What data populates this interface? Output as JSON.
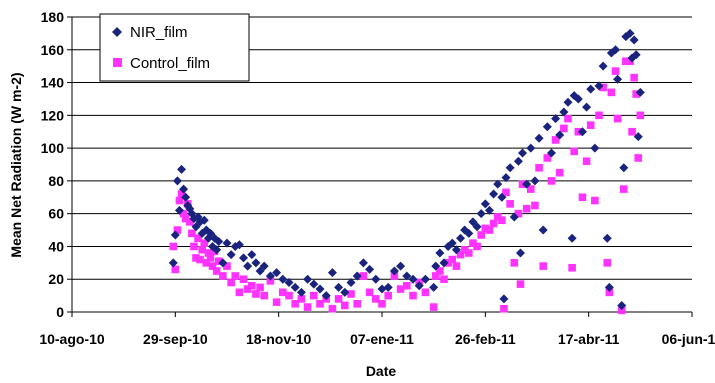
{
  "chart_data": {
    "type": "scatter",
    "xlabel": "Date",
    "ylabel": "Mean Net Radiation (W m-2)",
    "ylim": [
      0,
      180
    ],
    "yticks": [
      0,
      20,
      40,
      60,
      80,
      100,
      120,
      140,
      160,
      180
    ],
    "xlim": [
      "2010-08-10",
      "2011-06-06"
    ],
    "xticks": [
      {
        "date": "2010-08-10",
        "label": "10-ago-10"
      },
      {
        "date": "2010-09-29",
        "label": "29-sep-10"
      },
      {
        "date": "2010-11-18",
        "label": "18-nov-10"
      },
      {
        "date": "2011-01-07",
        "label": "07-ene-11"
      },
      {
        "date": "2011-02-26",
        "label": "26-feb-11"
      },
      {
        "date": "2011-04-17",
        "label": "17-abr-11"
      },
      {
        "date": "2011-06-06",
        "label": "06-jun-11"
      }
    ],
    "grid": "horizontal",
    "legend_position": "top-left",
    "series": [
      {
        "name": "NIR_film",
        "color": "#1a237e",
        "marker": "diamond",
        "points": [
          [
            "2010-09-28",
            30
          ],
          [
            "2010-09-29",
            47
          ],
          [
            "2010-09-30",
            80
          ],
          [
            "2010-10-01",
            62
          ],
          [
            "2010-10-02",
            87
          ],
          [
            "2010-10-03",
            75
          ],
          [
            "2010-10-04",
            70
          ],
          [
            "2010-10-05",
            65
          ],
          [
            "2010-10-06",
            63
          ],
          [
            "2010-10-07",
            60
          ],
          [
            "2010-10-08",
            57
          ],
          [
            "2010-10-09",
            52
          ],
          [
            "2010-10-10",
            58
          ],
          [
            "2010-10-11",
            55
          ],
          [
            "2010-10-12",
            48
          ],
          [
            "2010-10-13",
            56
          ],
          [
            "2010-10-14",
            50
          ],
          [
            "2010-10-15",
            45
          ],
          [
            "2010-10-16",
            48
          ],
          [
            "2010-10-17",
            40
          ],
          [
            "2010-10-18",
            45
          ],
          [
            "2010-10-19",
            38
          ],
          [
            "2010-10-20",
            43
          ],
          [
            "2010-10-22",
            30
          ],
          [
            "2010-10-24",
            42
          ],
          [
            "2010-10-26",
            35
          ],
          [
            "2010-10-28",
            40
          ],
          [
            "2010-10-30",
            41
          ],
          [
            "2010-11-01",
            33
          ],
          [
            "2010-11-03",
            28
          ],
          [
            "2010-11-05",
            35
          ],
          [
            "2010-11-07",
            30
          ],
          [
            "2010-11-09",
            25
          ],
          [
            "2010-11-11",
            28
          ],
          [
            "2010-11-14",
            22
          ],
          [
            "2010-11-17",
            24
          ],
          [
            "2010-11-20",
            20
          ],
          [
            "2010-11-23",
            18
          ],
          [
            "2010-11-26",
            15
          ],
          [
            "2010-11-29",
            12
          ],
          [
            "2010-12-02",
            20
          ],
          [
            "2010-12-05",
            17
          ],
          [
            "2010-12-08",
            14
          ],
          [
            "2010-12-11",
            10
          ],
          [
            "2010-12-14",
            24
          ],
          [
            "2010-12-17",
            15
          ],
          [
            "2010-12-20",
            12
          ],
          [
            "2010-12-23",
            18
          ],
          [
            "2010-12-26",
            22
          ],
          [
            "2010-12-29",
            30
          ],
          [
            "2011-01-01",
            26
          ],
          [
            "2011-01-04",
            20
          ],
          [
            "2011-01-07",
            14
          ],
          [
            "2011-01-10",
            15
          ],
          [
            "2011-01-13",
            25
          ],
          [
            "2011-01-16",
            28
          ],
          [
            "2011-01-19",
            22
          ],
          [
            "2011-01-22",
            20
          ],
          [
            "2011-01-25",
            16
          ],
          [
            "2011-01-28",
            20
          ],
          [
            "2011-02-01",
            15
          ],
          [
            "2011-02-02",
            28
          ],
          [
            "2011-02-04",
            36
          ],
          [
            "2011-02-06",
            30
          ],
          [
            "2011-02-08",
            40
          ],
          [
            "2011-02-10",
            42
          ],
          [
            "2011-02-12",
            38
          ],
          [
            "2011-02-14",
            45
          ],
          [
            "2011-02-16",
            50
          ],
          [
            "2011-02-18",
            48
          ],
          [
            "2011-02-20",
            55
          ],
          [
            "2011-02-22",
            52
          ],
          [
            "2011-02-24",
            60
          ],
          [
            "2011-02-26",
            66
          ],
          [
            "2011-02-28",
            62
          ],
          [
            "2011-03-02",
            72
          ],
          [
            "2011-03-04",
            78
          ],
          [
            "2011-03-06",
            70
          ],
          [
            "2011-03-07",
            8
          ],
          [
            "2011-03-08",
            82
          ],
          [
            "2011-03-10",
            88
          ],
          [
            "2011-03-12",
            58
          ],
          [
            "2011-03-14",
            92
          ],
          [
            "2011-03-15",
            36
          ],
          [
            "2011-03-16",
            97
          ],
          [
            "2011-03-18",
            78
          ],
          [
            "2011-03-20",
            100
          ],
          [
            "2011-03-22",
            80
          ],
          [
            "2011-03-24",
            106
          ],
          [
            "2011-03-26",
            50
          ],
          [
            "2011-03-28",
            113
          ],
          [
            "2011-03-30",
            97
          ],
          [
            "2011-04-01",
            118
          ],
          [
            "2011-04-03",
            108
          ],
          [
            "2011-04-05",
            122
          ],
          [
            "2011-04-07",
            128
          ],
          [
            "2011-04-09",
            45
          ],
          [
            "2011-04-10",
            132
          ],
          [
            "2011-04-12",
            130
          ],
          [
            "2011-04-14",
            110
          ],
          [
            "2011-04-16",
            125
          ],
          [
            "2011-04-18",
            136
          ],
          [
            "2011-04-20",
            100
          ],
          [
            "2011-04-22",
            138
          ],
          [
            "2011-04-24",
            150
          ],
          [
            "2011-04-26",
            45
          ],
          [
            "2011-04-27",
            15
          ],
          [
            "2011-04-28",
            158
          ],
          [
            "2011-04-30",
            160
          ],
          [
            "2011-05-01",
            142
          ],
          [
            "2011-05-03",
            4
          ],
          [
            "2011-05-04",
            88
          ],
          [
            "2011-05-05",
            168
          ],
          [
            "2011-05-07",
            170
          ],
          [
            "2011-05-08",
            155
          ],
          [
            "2011-05-09",
            166
          ],
          [
            "2011-05-10",
            157
          ],
          [
            "2011-05-11",
            107
          ],
          [
            "2011-05-12",
            134
          ]
        ]
      },
      {
        "name": "Control_film",
        "color": "#ff33ff",
        "marker": "square",
        "points": [
          [
            "2010-09-28",
            40
          ],
          [
            "2010-09-29",
            26
          ],
          [
            "2010-09-30",
            50
          ],
          [
            "2010-10-01",
            68
          ],
          [
            "2010-10-02",
            72
          ],
          [
            "2010-10-03",
            60
          ],
          [
            "2010-10-04",
            57
          ],
          [
            "2010-10-05",
            66
          ],
          [
            "2010-10-06",
            55
          ],
          [
            "2010-10-07",
            48
          ],
          [
            "2010-10-08",
            40
          ],
          [
            "2010-10-09",
            33
          ],
          [
            "2010-10-10",
            45
          ],
          [
            "2010-10-11",
            32
          ],
          [
            "2010-10-12",
            38
          ],
          [
            "2010-10-13",
            42
          ],
          [
            "2010-10-14",
            30
          ],
          [
            "2010-10-15",
            36
          ],
          [
            "2010-10-16",
            33
          ],
          [
            "2010-10-17",
            28
          ],
          [
            "2010-10-18",
            37
          ],
          [
            "2010-10-19",
            25
          ],
          [
            "2010-10-20",
            31
          ],
          [
            "2010-10-22",
            22
          ],
          [
            "2010-10-24",
            28
          ],
          [
            "2010-10-26",
            18
          ],
          [
            "2010-10-28",
            22
          ],
          [
            "2010-10-30",
            12
          ],
          [
            "2010-11-01",
            20
          ],
          [
            "2010-11-03",
            14
          ],
          [
            "2010-11-05",
            16
          ],
          [
            "2010-11-07",
            11
          ],
          [
            "2010-11-09",
            15
          ],
          [
            "2010-11-11",
            10
          ],
          [
            "2010-11-14",
            19
          ],
          [
            "2010-11-17",
            6
          ],
          [
            "2010-11-20",
            12
          ],
          [
            "2010-11-23",
            10
          ],
          [
            "2010-11-26",
            5
          ],
          [
            "2010-11-29",
            8
          ],
          [
            "2010-12-02",
            3
          ],
          [
            "2010-12-05",
            10
          ],
          [
            "2010-12-08",
            5
          ],
          [
            "2010-12-11",
            8
          ],
          [
            "2010-12-14",
            2
          ],
          [
            "2010-12-17",
            8
          ],
          [
            "2010-12-20",
            4
          ],
          [
            "2010-12-23",
            11
          ],
          [
            "2010-12-26",
            5
          ],
          [
            "2010-12-29",
            22
          ],
          [
            "2011-01-01",
            12
          ],
          [
            "2011-01-04",
            8
          ],
          [
            "2011-01-07",
            5
          ],
          [
            "2011-01-10",
            10
          ],
          [
            "2011-01-13",
            22
          ],
          [
            "2011-01-16",
            14
          ],
          [
            "2011-01-19",
            16
          ],
          [
            "2011-01-22",
            10
          ],
          [
            "2011-01-25",
            18
          ],
          [
            "2011-01-28",
            12
          ],
          [
            "2011-02-01",
            3
          ],
          [
            "2011-02-02",
            22
          ],
          [
            "2011-02-04",
            25
          ],
          [
            "2011-02-06",
            20
          ],
          [
            "2011-02-08",
            30
          ],
          [
            "2011-02-10",
            32
          ],
          [
            "2011-02-12",
            28
          ],
          [
            "2011-02-14",
            35
          ],
          [
            "2011-02-16",
            38
          ],
          [
            "2011-02-18",
            36
          ],
          [
            "2011-02-20",
            42
          ],
          [
            "2011-02-22",
            40
          ],
          [
            "2011-02-24",
            47
          ],
          [
            "2011-02-26",
            51
          ],
          [
            "2011-02-28",
            50
          ],
          [
            "2011-03-02",
            54
          ],
          [
            "2011-03-04",
            58
          ],
          [
            "2011-03-06",
            56
          ],
          [
            "2011-03-07",
            2
          ],
          [
            "2011-03-08",
            73
          ],
          [
            "2011-03-10",
            66
          ],
          [
            "2011-03-12",
            30
          ],
          [
            "2011-03-14",
            60
          ],
          [
            "2011-03-15",
            17
          ],
          [
            "2011-03-16",
            78
          ],
          [
            "2011-03-18",
            63
          ],
          [
            "2011-03-20",
            75
          ],
          [
            "2011-03-22",
            65
          ],
          [
            "2011-03-24",
            88
          ],
          [
            "2011-03-26",
            28
          ],
          [
            "2011-03-28",
            94
          ],
          [
            "2011-03-30",
            80
          ],
          [
            "2011-04-01",
            105
          ],
          [
            "2011-04-03",
            85
          ],
          [
            "2011-04-05",
            112
          ],
          [
            "2011-04-07",
            118
          ],
          [
            "2011-04-09",
            27
          ],
          [
            "2011-04-10",
            98
          ],
          [
            "2011-04-12",
            110
          ],
          [
            "2011-04-14",
            70
          ],
          [
            "2011-04-16",
            92
          ],
          [
            "2011-04-18",
            114
          ],
          [
            "2011-04-20",
            68
          ],
          [
            "2011-04-22",
            120
          ],
          [
            "2011-04-24",
            137
          ],
          [
            "2011-04-26",
            30
          ],
          [
            "2011-04-27",
            12
          ],
          [
            "2011-04-28",
            134
          ],
          [
            "2011-04-30",
            147
          ],
          [
            "2011-05-01",
            118
          ],
          [
            "2011-05-03",
            1
          ],
          [
            "2011-05-04",
            75
          ],
          [
            "2011-05-05",
            153
          ],
          [
            "2011-05-07",
            153
          ],
          [
            "2011-05-08",
            110
          ],
          [
            "2011-05-09",
            143
          ],
          [
            "2011-05-10",
            133
          ],
          [
            "2011-05-11",
            94
          ],
          [
            "2011-05-12",
            120
          ]
        ]
      }
    ]
  }
}
